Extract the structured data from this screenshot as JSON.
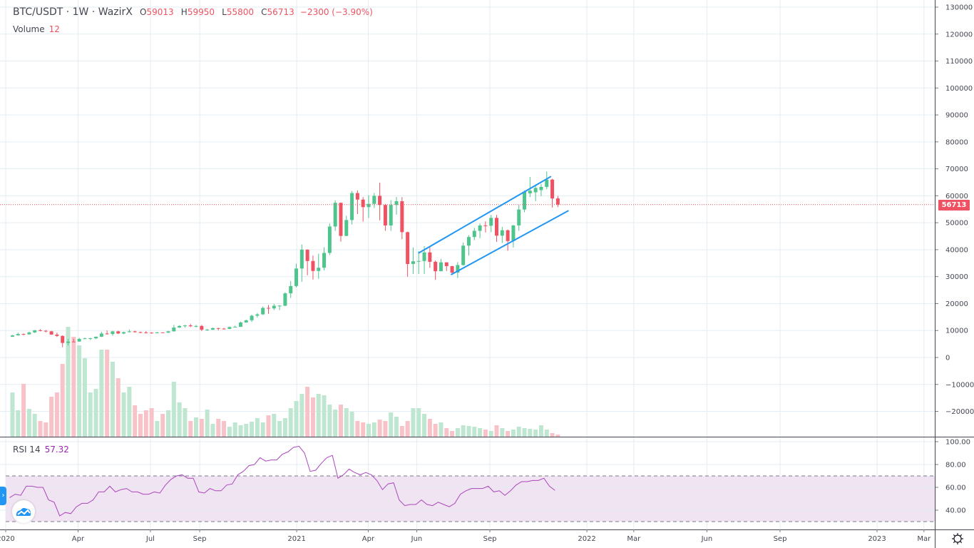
{
  "header": {
    "symbol": "BTC/USDT · 1W · WazirX",
    "open_label": "O",
    "open": "59013",
    "high_label": "H",
    "high": "59950",
    "low_label": "L",
    "low": "55800",
    "close_label": "C",
    "close": "56713",
    "change": "−2300 (−3.90%)"
  },
  "volume_legend": {
    "label": "Volume",
    "value": "12"
  },
  "rsi_legend": {
    "label": "RSI 14",
    "value": "57.32"
  },
  "last_price_tag": "56713",
  "colors": {
    "up": "#4fc58d",
    "down": "#ef5262",
    "volume_up": "#bfe6d1",
    "volume_down": "#f8c3c8",
    "trendline": "#2196f3",
    "rsi_line": "#ab47bc",
    "rsi_band": "#f0e3f2",
    "grid": "#e3edf3"
  },
  "icons": {
    "side_toggle": "chevron-right-icon",
    "logo": "tradingview-cloud-logo",
    "settings": "gear-icon"
  },
  "chart_data": [
    {
      "type": "candlestick",
      "symbol": "BTC/USDT",
      "interval": "1W",
      "y_axis": {
        "ticks": [
          "130000",
          "120000",
          "110000",
          "100000",
          "90000",
          "80000",
          "70000",
          "60000",
          "50000",
          "40000",
          "30000",
          "20000",
          "10000",
          "0",
          "−10000",
          "−20000"
        ],
        "ylim": [
          -29000,
          131000
        ]
      },
      "x_axis": {
        "ticks": [
          {
            "label": "2020",
            "date": "2020-01-01"
          },
          {
            "label": "Apr",
            "date": "2020-04-01"
          },
          {
            "label": "Jul",
            "date": "2020-07-01"
          },
          {
            "label": "Sep",
            "date": "2020-09-01"
          },
          {
            "label": "2021",
            "date": "2021-01-01"
          },
          {
            "label": "Apr",
            "date": "2021-04-01"
          },
          {
            "label": "Jun",
            "date": "2021-06-01"
          },
          {
            "label": "Sep",
            "date": "2021-09-01"
          },
          {
            "label": "2022",
            "date": "2022-01-01"
          },
          {
            "label": "Mar",
            "date": "2022-03-01"
          },
          {
            "label": "Jun",
            "date": "2022-06-01"
          },
          {
            "label": "Sep",
            "date": "2022-09-01"
          },
          {
            "label": "2023",
            "date": "2023-01-01"
          },
          {
            "label": "Mar",
            "date": "2023-03-01"
          }
        ]
      },
      "grid": true,
      "last_price": 56713,
      "candles_ohlc": [
        [
          "2020-01-06",
          7700,
          8400,
          7600,
          8200
        ],
        [
          "2020-01-13",
          8200,
          9200,
          8100,
          8700
        ],
        [
          "2020-01-20",
          8700,
          8900,
          8300,
          8600
        ],
        [
          "2020-01-27",
          8600,
          9600,
          8500,
          9300
        ],
        [
          "2020-02-03",
          9300,
          10200,
          9100,
          10100
        ],
        [
          "2020-02-10",
          10100,
          10500,
          9700,
          9900
        ],
        [
          "2020-02-17",
          9900,
          10200,
          9300,
          9700
        ],
        [
          "2020-02-24",
          9700,
          9900,
          8400,
          8500
        ],
        [
          "2020-03-02",
          8500,
          9200,
          7600,
          8000
        ],
        [
          "2020-03-09",
          8000,
          8200,
          3800,
          5400
        ],
        [
          "2020-03-16",
          5400,
          6900,
          4400,
          5900
        ],
        [
          "2020-03-23",
          5900,
          6900,
          5800,
          5880
        ],
        [
          "2020-03-30",
          5900,
          7300,
          5900,
          6900
        ],
        [
          "2020-04-06",
          6900,
          7400,
          6800,
          7100
        ],
        [
          "2020-04-13",
          7100,
          7300,
          6500,
          7150
        ],
        [
          "2020-04-20",
          7100,
          7800,
          6800,
          7700
        ],
        [
          "2020-04-27",
          7700,
          9500,
          7600,
          8900
        ],
        [
          "2020-05-04",
          8900,
          10000,
          8500,
          8700
        ],
        [
          "2020-05-11",
          8700,
          9900,
          8100,
          9700
        ],
        [
          "2020-05-18",
          9700,
          9900,
          8700,
          8900
        ],
        [
          "2020-05-25",
          8900,
          9600,
          8600,
          9400
        ],
        [
          "2020-06-01",
          9400,
          10400,
          9300,
          9700
        ],
        [
          "2020-06-08",
          9700,
          9900,
          9200,
          9400
        ],
        [
          "2020-06-15",
          9400,
          9600,
          9000,
          9300
        ],
        [
          "2020-06-22",
          9300,
          9800,
          8900,
          9200
        ],
        [
          "2020-06-29",
          9200,
          9400,
          8900,
          9100
        ],
        [
          "2020-07-06",
          9100,
          9500,
          9000,
          9300
        ],
        [
          "2020-07-13",
          9300,
          9300,
          9100,
          9200
        ],
        [
          "2020-07-20",
          9200,
          9900,
          9100,
          9700
        ],
        [
          "2020-07-27",
          9700,
          12100,
          9600,
          11100
        ],
        [
          "2020-08-03",
          11100,
          12000,
          11000,
          11700
        ],
        [
          "2020-08-10",
          11700,
          12100,
          11100,
          11900
        ],
        [
          "2020-08-17",
          11900,
          12500,
          11300,
          11600
        ],
        [
          "2020-08-24",
          11600,
          12100,
          11100,
          11700
        ],
        [
          "2020-08-31",
          11700,
          12100,
          9800,
          10300
        ],
        [
          "2020-09-07",
          10300,
          10600,
          9900,
          10350
        ],
        [
          "2020-09-14",
          10300,
          11100,
          10200,
          10900
        ],
        [
          "2020-09-21",
          10900,
          11000,
          10100,
          10700
        ],
        [
          "2020-09-28",
          10700,
          11000,
          10400,
          10600
        ],
        [
          "2020-10-05",
          10600,
          11500,
          10500,
          11300
        ],
        [
          "2020-10-12",
          11300,
          11800,
          11200,
          11400
        ],
        [
          "2020-10-19",
          11400,
          13300,
          11300,
          13000
        ],
        [
          "2020-10-26",
          13000,
          14000,
          12900,
          13800
        ],
        [
          "2020-11-02",
          13800,
          15900,
          13200,
          15500
        ],
        [
          "2020-11-09",
          15500,
          16500,
          14800,
          16000
        ],
        [
          "2020-11-16",
          16000,
          18900,
          15800,
          18400
        ],
        [
          "2020-11-23",
          18400,
          19500,
          16200,
          18200
        ],
        [
          "2020-11-30",
          18200,
          19900,
          17600,
          19200
        ],
        [
          "2020-12-07",
          19200,
          19400,
          17600,
          19250
        ],
        [
          "2020-12-14",
          19200,
          24200,
          19000,
          23800
        ],
        [
          "2020-12-21",
          23800,
          28400,
          22100,
          26500
        ],
        [
          "2020-12-28",
          26500,
          34800,
          26000,
          33000
        ],
        [
          "2021-01-04",
          33000,
          41900,
          28100,
          40000
        ],
        [
          "2021-01-11",
          40000,
          40100,
          30500,
          35800
        ],
        [
          "2021-01-18",
          35800,
          37800,
          28900,
          32100
        ],
        [
          "2021-01-25",
          32100,
          38500,
          29200,
          33300
        ],
        [
          "2021-02-01",
          33300,
          40900,
          32300,
          38800
        ],
        [
          "2021-02-08",
          38800,
          49700,
          38000,
          48600
        ],
        [
          "2021-02-15",
          48600,
          58300,
          47000,
          57400
        ],
        [
          "2021-02-22",
          57400,
          57500,
          43000,
          45100
        ],
        [
          "2021-03-01",
          45100,
          52600,
          45000,
          51000
        ],
        [
          "2021-03-08",
          51000,
          61800,
          49300,
          61000
        ],
        [
          "2021-03-15",
          61000,
          62000,
          53200,
          58600
        ],
        [
          "2021-03-22",
          58600,
          59500,
          50400,
          55800
        ],
        [
          "2021-03-29",
          55800,
          60200,
          51800,
          57000
        ],
        [
          "2021-04-05",
          57000,
          61000,
          55500,
          60000
        ],
        [
          "2021-04-12",
          60000,
          64900,
          50900,
          56600
        ],
        [
          "2021-04-19",
          56600,
          57000,
          47000,
          49000
        ],
        [
          "2021-04-26",
          49000,
          58400,
          47000,
          56600
        ],
        [
          "2021-05-03",
          56600,
          59600,
          53000,
          58000
        ],
        [
          "2021-05-10",
          58000,
          59500,
          43900,
          46500
        ],
        [
          "2021-05-17",
          46500,
          46700,
          30000,
          34700
        ],
        [
          "2021-05-24",
          34700,
          40800,
          31000,
          35700
        ],
        [
          "2021-05-31",
          35700,
          39500,
          31000,
          35800
        ],
        [
          "2021-06-07",
          35800,
          41300,
          31000,
          39000
        ],
        [
          "2021-06-14",
          39000,
          41000,
          33300,
          35500
        ],
        [
          "2021-06-21",
          35500,
          36000,
          28800,
          32000
        ],
        [
          "2021-06-28",
          32000,
          36600,
          32000,
          35300
        ],
        [
          "2021-07-05",
          35300,
          35300,
          32100,
          33900
        ],
        [
          "2021-07-12",
          33900,
          34000,
          31000,
          31500
        ],
        [
          "2021-07-19",
          31500,
          35400,
          29500,
          34300
        ],
        [
          "2021-07-26",
          34300,
          42600,
          34100,
          41500
        ],
        [
          "2021-08-02",
          41500,
          45400,
          37800,
          44700
        ],
        [
          "2021-08-09",
          44700,
          48100,
          43500,
          47000
        ],
        [
          "2021-08-16",
          47000,
          49700,
          44300,
          49000
        ],
        [
          "2021-08-23",
          49000,
          50500,
          46400,
          48900
        ],
        [
          "2021-08-30",
          48900,
          52900,
          46500,
          51800
        ],
        [
          "2021-09-06",
          51800,
          52900,
          42900,
          45200
        ],
        [
          "2021-09-13",
          45200,
          48500,
          42500,
          47200
        ],
        [
          "2021-09-20",
          47200,
          47500,
          39600,
          43200
        ],
        [
          "2021-09-27",
          43200,
          49200,
          40800,
          49000
        ],
        [
          "2021-10-04",
          49000,
          56600,
          47000,
          54900
        ],
        [
          "2021-10-11",
          54900,
          62000,
          53900,
          61500
        ],
        [
          "2021-10-18",
          60900,
          67000,
          59500,
          61900
        ],
        [
          "2021-10-25",
          61300,
          63700,
          58000,
          62900
        ],
        [
          "2021-11-01",
          62100,
          64300,
          59900,
          63300
        ],
        [
          "2021-11-08",
          63300,
          69000,
          62500,
          66000
        ],
        [
          "2021-11-15",
          66000,
          66300,
          55600,
          59013
        ],
        [
          "2021-11-22",
          59013,
          59950,
          55800,
          56713
        ]
      ],
      "volume": [
        248,
        148,
        296,
        156,
        128,
        88,
        80,
        224,
        248,
        408,
        616,
        560,
        512,
        440,
        248,
        268,
        488,
        488,
        420,
        328,
        248,
        280,
        176,
        128,
        148,
        160,
        88,
        128,
        148,
        308,
        192,
        160,
        88,
        108,
        100,
        152,
        72,
        100,
        88,
        56,
        80,
        64,
        72,
        84,
        104,
        80,
        120,
        128,
        88,
        104,
        160,
        200,
        240,
        280,
        220,
        240,
        232,
        180,
        152,
        180,
        160,
        140,
        88,
        80,
        72,
        80,
        96,
        88,
        136,
        112,
        60,
        88,
        160,
        160,
        128,
        100,
        72,
        80,
        48,
        32,
        48,
        64,
        60,
        56,
        48,
        40,
        32,
        64,
        48,
        32,
        40,
        56,
        48,
        44,
        40,
        64,
        40,
        20,
        12
      ],
      "trendlines": [
        {
          "from": [
            "2021-06-03",
            38700
          ],
          "to": [
            "2021-11-17",
            67200
          ]
        },
        {
          "from": [
            "2021-07-14",
            30700
          ],
          "to": [
            "2021-12-09",
            54500
          ]
        }
      ]
    },
    {
      "type": "line",
      "indicator": "RSI 14",
      "y_axis": {
        "ticks": [
          "100.00",
          "80.00",
          "60.00",
          "40.00"
        ]
      },
      "bands": {
        "upper": 70,
        "lower": 30
      },
      "values": [
        51,
        54,
        53,
        61,
        61,
        60,
        60,
        49,
        47,
        35,
        38,
        37,
        43,
        46,
        46,
        49,
        56,
        56,
        61,
        56,
        58,
        59,
        56,
        56,
        54,
        54,
        56,
        55,
        62,
        67,
        70,
        71,
        68,
        68,
        56,
        55,
        59,
        57,
        57,
        62,
        63,
        71,
        74,
        79,
        80,
        86,
        83,
        84,
        84,
        89,
        91,
        95,
        96,
        90,
        74,
        75,
        81,
        86,
        88,
        68,
        71,
        76,
        73,
        71,
        73,
        71,
        66,
        58,
        63,
        64,
        49,
        44,
        45,
        45,
        49,
        45,
        44,
        47,
        45,
        43,
        46,
        54,
        57,
        59,
        59,
        59,
        61,
        56,
        57,
        53,
        57,
        62,
        65,
        65,
        66,
        66,
        68,
        61,
        57.32
      ]
    }
  ]
}
